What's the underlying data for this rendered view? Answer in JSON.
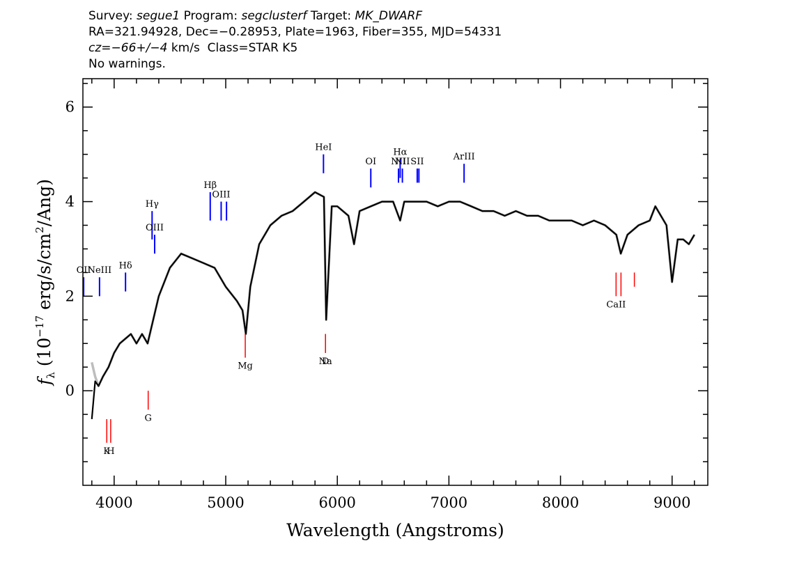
{
  "header": {
    "line1": {
      "survey_label": "Survey:",
      "survey": "segue1",
      "program_label": "Program:",
      "program": "segclusterf",
      "target_label": "Target:",
      "target": "MK_DWARF"
    },
    "line2": "RA=321.94928, Dec=−0.28953, Plate=1963, Fiber=355, MJD=54331",
    "line3": {
      "cz_label": "cz=",
      "cz_value": "−66+/−4",
      "cz_rest": " km/s  Class=STAR K5"
    },
    "line4": "No warnings."
  },
  "chart_data": {
    "type": "line",
    "title": "",
    "xlabel": "Wavelength (Angstroms)",
    "ylabel_main": "f",
    "ylabel_sub": "λ",
    "ylabel_rest": "(10",
    "ylabel_exp1": "−17",
    "ylabel_mid": "erg/s/cm",
    "ylabel_exp2": "2",
    "ylabel_end": "/Ang)",
    "xlim": [
      3720,
      9320
    ],
    "ylim": [
      -2.0,
      6.6
    ],
    "xticks": [
      4000,
      5000,
      6000,
      7000,
      8000,
      9000
    ],
    "yticks": [
      0,
      2,
      4,
      6
    ],
    "series": [
      {
        "role": "noise",
        "color": "#bdbdbd",
        "x": [
          3800,
          3830,
          3860,
          3900,
          3950,
          4000,
          4050,
          4100,
          4150,
          4200,
          4250,
          4300,
          4340,
          4400,
          4450,
          4500,
          4600,
          4700,
          4800,
          4900,
          5000,
          5100,
          5150,
          5180,
          5220,
          5300,
          5400,
          5500,
          5600,
          5700,
          5800,
          5880,
          5900,
          5950,
          6000,
          6100,
          6150,
          6200,
          6300,
          6400,
          6500,
          6563,
          6600,
          6700,
          6800,
          6900,
          7000,
          7100,
          7200,
          7300,
          7400,
          7500,
          7600,
          7700,
          7800,
          7900,
          8000,
          8100,
          8200,
          8300,
          8400,
          8500,
          8540,
          8600,
          8700,
          8800,
          8850,
          8900,
          8950,
          9000,
          9050,
          9100,
          9150,
          9200
        ],
        "y": [
          0.6,
          0.3,
          0.1,
          0.3,
          0.5,
          0.8,
          1.0,
          1.1,
          1.2,
          1.0,
          1.2,
          1.0,
          1.4,
          2.0,
          2.3,
          2.6,
          2.9,
          2.8,
          2.7,
          2.6,
          2.2,
          1.9,
          1.7,
          1.2,
          2.2,
          3.1,
          3.5,
          3.7,
          3.8,
          4.0,
          4.2,
          4.1,
          1.5,
          3.9,
          3.9,
          3.7,
          3.1,
          3.8,
          3.9,
          4.0,
          4.0,
          3.6,
          4.0,
          4.0,
          4.0,
          3.9,
          4.0,
          4.0,
          3.9,
          3.8,
          3.8,
          3.7,
          3.8,
          3.7,
          3.7,
          3.6,
          3.6,
          3.6,
          3.5,
          3.6,
          3.5,
          3.3,
          2.9,
          3.3,
          3.5,
          3.6,
          3.9,
          3.7,
          3.5,
          2.3,
          3.2,
          3.2,
          3.1,
          3.3
        ]
      },
      {
        "role": "flux",
        "color": "#000000",
        "x": [
          3800,
          3830,
          3860,
          3900,
          3950,
          4000,
          4050,
          4100,
          4150,
          4200,
          4250,
          4300,
          4340,
          4400,
          4450,
          4500,
          4600,
          4700,
          4800,
          4900,
          5000,
          5100,
          5150,
          5180,
          5220,
          5300,
          5400,
          5500,
          5600,
          5700,
          5800,
          5880,
          5900,
          5950,
          6000,
          6100,
          6150,
          6200,
          6300,
          6400,
          6500,
          6563,
          6600,
          6700,
          6800,
          6900,
          7000,
          7100,
          7200,
          7300,
          7400,
          7500,
          7600,
          7700,
          7800,
          7900,
          8000,
          8100,
          8200,
          8300,
          8400,
          8500,
          8540,
          8600,
          8700,
          8800,
          8850,
          8900,
          8950,
          9000,
          9050,
          9100,
          9150,
          9200
        ],
        "y": [
          -0.6,
          0.2,
          0.1,
          0.3,
          0.5,
          0.8,
          1.0,
          1.1,
          1.2,
          1.0,
          1.2,
          1.0,
          1.4,
          2.0,
          2.3,
          2.6,
          2.9,
          2.8,
          2.7,
          2.6,
          2.2,
          1.9,
          1.7,
          1.2,
          2.2,
          3.1,
          3.5,
          3.7,
          3.8,
          4.0,
          4.2,
          4.1,
          1.5,
          3.9,
          3.9,
          3.7,
          3.1,
          3.8,
          3.9,
          4.0,
          4.0,
          3.6,
          4.0,
          4.0,
          4.0,
          3.9,
          4.0,
          4.0,
          3.9,
          3.8,
          3.8,
          3.7,
          3.8,
          3.7,
          3.7,
          3.6,
          3.6,
          3.6,
          3.5,
          3.6,
          3.5,
          3.3,
          2.9,
          3.3,
          3.5,
          3.6,
          3.9,
          3.7,
          3.5,
          2.3,
          3.2,
          3.2,
          3.1,
          3.3
        ]
      }
    ],
    "emission_lines": [
      {
        "label": "OII",
        "x": 3727,
        "y_bottom": 2.0,
        "y_top": 2.4
      },
      {
        "label": "NeIII",
        "x": 3869,
        "y_bottom": 2.0,
        "y_top": 2.4
      },
      {
        "label": "Hδ",
        "x": 4102,
        "y_bottom": 2.1,
        "y_top": 2.5
      },
      {
        "label": "Hγ",
        "x": 4340,
        "y_bottom": 3.2,
        "y_top": 3.8
      },
      {
        "label": "OIII",
        "x": 4363,
        "y_bottom": 2.9,
        "y_top": 3.3
      },
      {
        "label": "Hβ",
        "x": 4861,
        "y_bottom": 3.6,
        "y_top": 4.2
      },
      {
        "label": "OIII",
        "x": 4959,
        "y_bottom": 3.6,
        "y_top": 4.0
      },
      {
        "label": "",
        "x": 5007,
        "y_bottom": 3.6,
        "y_top": 4.0
      },
      {
        "label": "HeI",
        "x": 5876,
        "y_bottom": 4.6,
        "y_top": 5.0
      },
      {
        "label": "OI",
        "x": 6300,
        "y_bottom": 4.3,
        "y_top": 4.7
      },
      {
        "label": "NII",
        "x": 6548,
        "y_bottom": 4.4,
        "y_top": 4.7
      },
      {
        "label": "Hα",
        "x": 6563,
        "y_bottom": 4.5,
        "y_top": 4.9
      },
      {
        "label": "NII",
        "x": 6583,
        "y_bottom": 4.4,
        "y_top": 4.7
      },
      {
        "label": "SII",
        "x": 6716,
        "y_bottom": 4.4,
        "y_top": 4.7
      },
      {
        "label": "",
        "x": 6731,
        "y_bottom": 4.4,
        "y_top": 4.7
      },
      {
        "label": "ArIII",
        "x": 7136,
        "y_bottom": 4.4,
        "y_top": 4.8
      }
    ],
    "absorption_lines": [
      {
        "label": "K",
        "x": 3934,
        "y_top": -0.6,
        "y_bottom": -1.1
      },
      {
        "label": "H",
        "x": 3969,
        "y_top": -0.6,
        "y_bottom": -1.1
      },
      {
        "label": "G",
        "x": 4305,
        "y_top": 0.0,
        "y_bottom": -0.4
      },
      {
        "label": "Mg",
        "x": 5175,
        "y_top": 1.2,
        "y_bottom": 0.7
      },
      {
        "label": "Na",
        "x": 5894,
        "y_top": 1.2,
        "y_bottom": 0.8
      },
      {
        "label": "D",
        "x": 5894,
        "y_top": 1.2,
        "y_bottom": 0.8
      },
      {
        "label": "CaII",
        "x": 8498,
        "y_top": 2.5,
        "y_bottom": 2.0
      },
      {
        "label": "",
        "x": 8542,
        "y_top": 2.5,
        "y_bottom": 2.0
      },
      {
        "label": "",
        "x": 8662,
        "y_top": 2.5,
        "y_bottom": 2.2
      }
    ],
    "grid": false,
    "emission_color": "#0000ff",
    "absorption_color": "#ff0000"
  }
}
